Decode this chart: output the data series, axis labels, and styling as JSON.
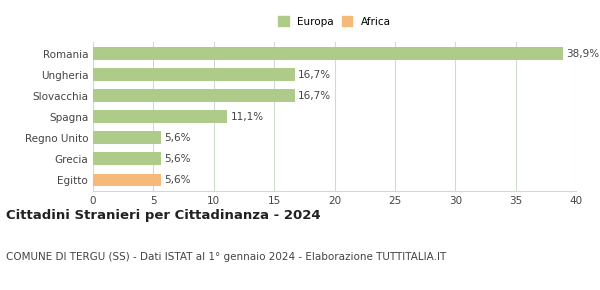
{
  "categories": [
    "Romania",
    "Ungheria",
    "Slovacchia",
    "Spagna",
    "Regno Unito",
    "Grecia",
    "Egitto"
  ],
  "values": [
    38.9,
    16.7,
    16.7,
    11.1,
    5.6,
    5.6,
    5.6
  ],
  "labels": [
    "38,9%",
    "16,7%",
    "16,7%",
    "11,1%",
    "5,6%",
    "5,6%",
    "5,6%"
  ],
  "colors": [
    "#aecb8a",
    "#aecb8a",
    "#aecb8a",
    "#aecb8a",
    "#aecb8a",
    "#aecb8a",
    "#f5b97a"
  ],
  "legend": [
    {
      "label": "Europa",
      "color": "#aecb8a"
    },
    {
      "label": "Africa",
      "color": "#f5b97a"
    }
  ],
  "xlim": [
    0,
    40
  ],
  "xticks": [
    0,
    5,
    10,
    15,
    20,
    25,
    30,
    35,
    40
  ],
  "title": "Cittadini Stranieri per Cittadinanza - 2024",
  "subtitle": "COMUNE DI TERGU (SS) - Dati ISTAT al 1° gennaio 2024 - Elaborazione TUTTITALIA.IT",
  "title_fontsize": 9.5,
  "subtitle_fontsize": 7.5,
  "label_fontsize": 7.5,
  "tick_fontsize": 7.5,
  "bar_height": 0.6,
  "background_color": "#ffffff",
  "grid_color": "#ccddcc",
  "text_color": "#444444"
}
